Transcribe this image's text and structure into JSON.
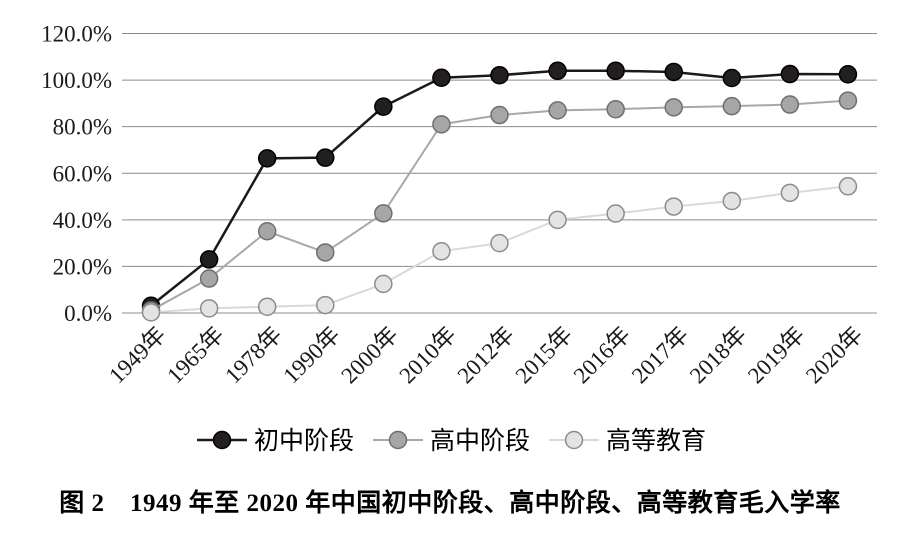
{
  "figure": {
    "caption": "图 2　1949 年至 2020 年中国初中阶段、高中阶段、高等教育毛入学率"
  },
  "chart_data": {
    "type": "line",
    "title": "",
    "xlabel": "",
    "ylabel": "",
    "categories": [
      "1949年",
      "1965年",
      "1978年",
      "1990年",
      "2000年",
      "2010年",
      "2012年",
      "2015年",
      "2016年",
      "2017年",
      "2018年",
      "2019年",
      "2020年"
    ],
    "series": [
      {
        "name": "初中阶段",
        "values": [
          3.1,
          23.0,
          66.4,
          66.7,
          88.6,
          101.0,
          102.1,
          104.0,
          104.0,
          103.5,
          100.9,
          102.6,
          102.5
        ],
        "line_color": "#1a1a1a",
        "line_width": 2.5,
        "marker_fill": "#231f20",
        "marker_stroke": "#000000"
      },
      {
        "name": "高中阶段",
        "values": [
          1.1,
          14.8,
          35.1,
          26.0,
          42.8,
          81.0,
          85.0,
          87.0,
          87.5,
          88.3,
          88.8,
          89.5,
          91.2
        ],
        "line_color": "#a8a8a8",
        "line_width": 2,
        "marker_fill": "#a6a6a6",
        "marker_stroke": "#6f6f6f"
      },
      {
        "name": "高等教育",
        "values": [
          0.26,
          2.0,
          2.7,
          3.4,
          12.5,
          26.5,
          30.0,
          40.0,
          42.7,
          45.7,
          48.1,
          51.6,
          54.4
        ],
        "line_color": "#d9d9d9",
        "line_width": 2,
        "marker_fill": "#e3e3e3",
        "marker_stroke": "#8c8c8c"
      }
    ],
    "ylim": [
      0,
      120
    ],
    "ytick_values": [
      0,
      20,
      40,
      60,
      80,
      100,
      120
    ],
    "ytick_labels": [
      "0.0%",
      "20.0%",
      "40.0%",
      "60.0%",
      "80.0%",
      "100.0%",
      "120.0%"
    ],
    "grid": true,
    "gridline_color": "#8c8c8c",
    "legend_position": "bottom",
    "text_color": "#1a1a1a"
  }
}
